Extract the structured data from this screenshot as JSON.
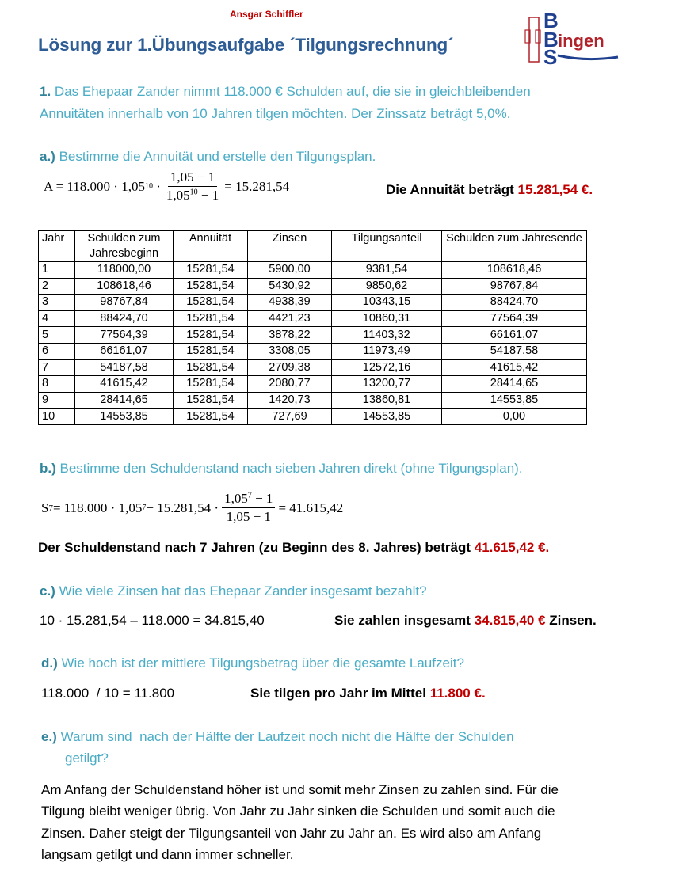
{
  "author": "Ansgar Schiffler",
  "title": "Lösung zur 1.Übungsaufgabe ´Tilgungsrechnung´",
  "logo": {
    "text": "BBS Bingen",
    "colors": {
      "blue": "#1f3f8f",
      "red": "#b0232a"
    }
  },
  "colors": {
    "title": "#2e5d95",
    "section": "#4bacc6",
    "highlight": "#c00000"
  },
  "task": {
    "number": "1.",
    "lines": [
      "Das Ehepaar Zander nimmt 118.000 € Schulden auf, die sie in gleichbleibenden",
      "Annuitäten innerhalb von 10 Jahren tilgen möchten. Der Zinssatz beträgt 5,0%."
    ]
  },
  "a": {
    "label": "a.)",
    "question": "Bestimme die Annuität und erstelle den Tilgungsplan.",
    "formula": {
      "lhs": "A = 118.000 · 1,05",
      "exp": "10",
      "dot": "·",
      "num": "1,05 − 1",
      "den_base": "1,05",
      "den_exp": "10",
      "den_rest": " − 1",
      "result": "= 15.281,54"
    },
    "answer_text": "Die Annuität beträgt ",
    "answer_value": "15.281,54 €."
  },
  "table": {
    "headers": [
      "Jahr",
      "Schulden zum Jahresbeginn",
      "Annuität",
      "Zinsen",
      "Tilgungsanteil",
      "Schulden zum Jahresende"
    ],
    "rows": [
      [
        "1",
        "118000,00",
        "15281,54",
        "5900,00",
        "9381,54",
        "108618,46"
      ],
      [
        "2",
        "108618,46",
        "15281,54",
        "5430,92",
        "9850,62",
        "98767,84"
      ],
      [
        "3",
        "98767,84",
        "15281,54",
        "4938,39",
        "10343,15",
        "88424,70"
      ],
      [
        "4",
        "88424,70",
        "15281,54",
        "4421,23",
        "10860,31",
        "77564,39"
      ],
      [
        "5",
        "77564,39",
        "15281,54",
        "3878,22",
        "11403,32",
        "66161,07"
      ],
      [
        "6",
        "66161,07",
        "15281,54",
        "3308,05",
        "11973,49",
        "54187,58"
      ],
      [
        "7",
        "54187,58",
        "15281,54",
        "2709,38",
        "12572,16",
        "41615,42"
      ],
      [
        "8",
        "41615,42",
        "15281,54",
        "2080,77",
        "13200,77",
        "28414,65"
      ],
      [
        "9",
        "28414,65",
        "15281,54",
        "1420,73",
        "13860,81",
        "14553,85"
      ],
      [
        "10",
        "14553,85",
        "15281,54",
        "727,69",
        "14553,85",
        "0,00"
      ]
    ]
  },
  "b": {
    "label": "b.)",
    "question": "Bestimme den Schuldenstand nach sieben Jahren direkt (ohne Tilgungsplan).",
    "formula": {
      "lhs": "S",
      "sub": "7",
      "mid": " = 118.000 · 1,05",
      "exp": "7",
      "mid2": " − 15.281,54 ·",
      "num_base": "1,05",
      "num_exp": "7",
      "num_rest": " − 1",
      "den": "1,05 − 1",
      "result": "= 41.615,42"
    },
    "answer_text": "Der Schuldenstand nach 7 Jahren (zu Beginn des 8. Jahres) beträgt ",
    "answer_value": "41.615,42 €."
  },
  "c": {
    "label": "c.)",
    "question": "Wie viele Zinsen hat das Ehepaar Zander insgesamt bezahlt?",
    "calc": "10 · 15.281,54 – 118.000 = 34.815,40",
    "answer_text": "Sie zahlen insgesamt ",
    "answer_value": "34.815,40 €",
    "answer_suffix": " Zinsen."
  },
  "d": {
    "label": "d.)",
    "question": "Wie hoch ist der mittlere Tilgungsbetrag über die gesamte Laufzeit?",
    "calc": "118.000  / 10 = 11.800",
    "answer_text": "Sie tilgen pro Jahr im Mittel ",
    "answer_value": "11.800 €."
  },
  "e": {
    "label": "e.)",
    "question_lines": [
      "Warum sind  nach der Hälfte der Laufzeit noch nicht die Hälfte der Schulden",
      "getilgt?"
    ],
    "answer_lines": [
      "Am Anfang der Schuldenstand höher ist und somit mehr Zinsen zu zahlen sind. Für die",
      "Tilgung bleibt weniger übrig. Von Jahr zu Jahr sinken die Schulden und somit auch die",
      "Zinsen. Daher steigt der Tilgungsanteil von Jahr zu Jahr an. Es wird also am Anfang",
      "langsam getilgt und dann immer schneller."
    ]
  }
}
